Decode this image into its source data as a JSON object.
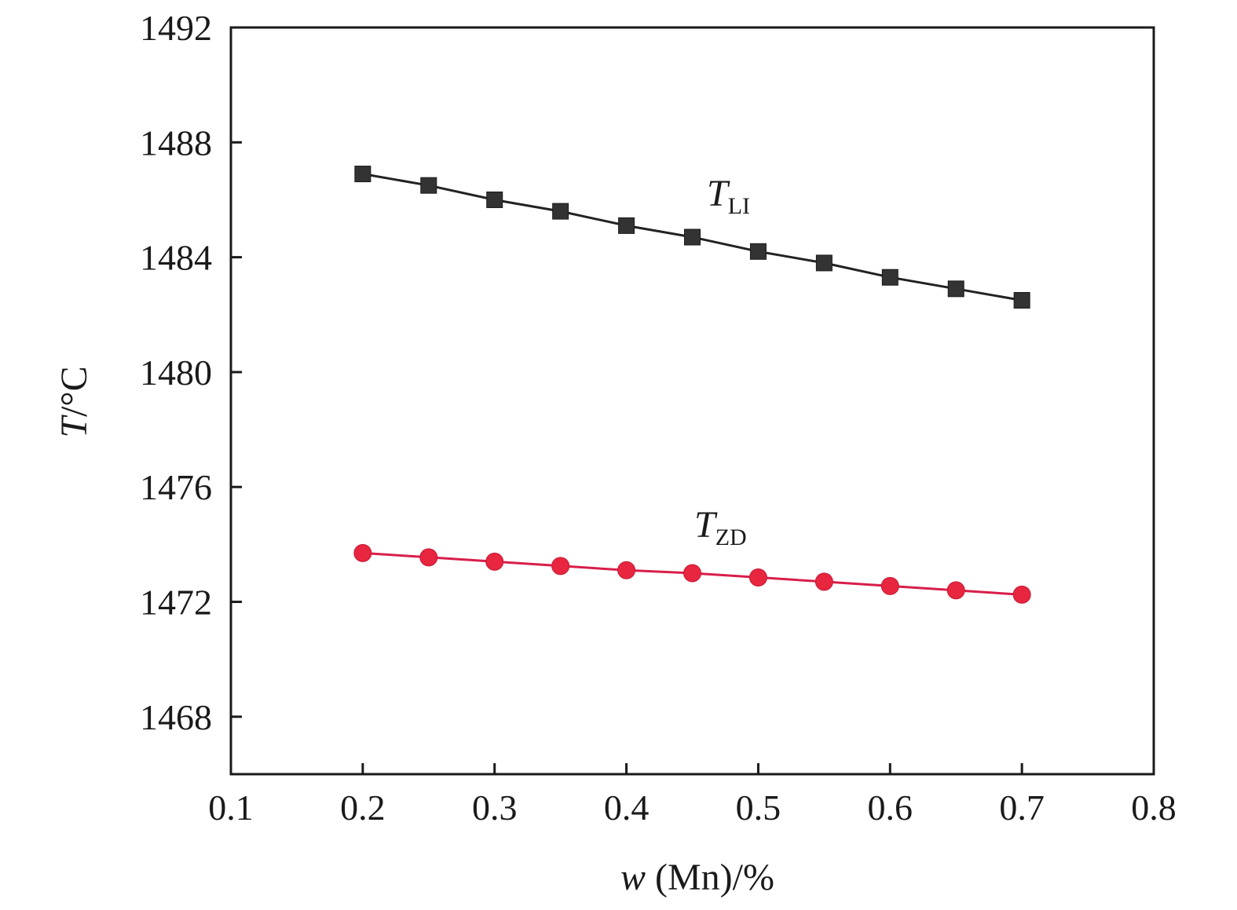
{
  "chart_data": {
    "type": "line",
    "xlabel": {
      "var": "w",
      "rest": " (Mn)/%"
    },
    "ylabel": {
      "var": "T",
      "rest": "/°C"
    },
    "xlim": [
      0.1,
      0.8
    ],
    "ylim": [
      1466,
      1492
    ],
    "xticks": [
      0.1,
      0.2,
      0.3,
      0.4,
      0.5,
      0.6,
      0.7,
      0.8
    ],
    "xtick_labels": [
      "0.1",
      "0.2",
      "0.3",
      "0.4",
      "0.5",
      "0.6",
      "0.7",
      "0.8"
    ],
    "yticks": [
      1468,
      1472,
      1476,
      1480,
      1484,
      1488,
      1492
    ],
    "ytick_labels": [
      "1468",
      "1472",
      "1476",
      "1480",
      "1484",
      "1488",
      "1492"
    ],
    "grid": false,
    "x": [
      0.2,
      0.25,
      0.3,
      0.35,
      0.4,
      0.45,
      0.5,
      0.55,
      0.6,
      0.65,
      0.7
    ],
    "series": [
      {
        "name": "T_LI",
        "label_main": "T",
        "label_sub": "LI",
        "marker": "square",
        "color": "#333333",
        "line_color": "#222222",
        "values": [
          1486.9,
          1486.5,
          1486.0,
          1485.6,
          1485.1,
          1484.7,
          1484.2,
          1483.8,
          1483.3,
          1482.9,
          1482.5
        ]
      },
      {
        "name": "T_ZD",
        "label_main": "T",
        "label_sub": "ZD",
        "marker": "circle",
        "color": "#e8263f",
        "line_color": "#d81e4a",
        "values": [
          1473.7,
          1473.55,
          1473.4,
          1473.25,
          1473.1,
          1473.0,
          1472.85,
          1472.7,
          1472.55,
          1472.4,
          1472.25
        ]
      }
    ]
  }
}
